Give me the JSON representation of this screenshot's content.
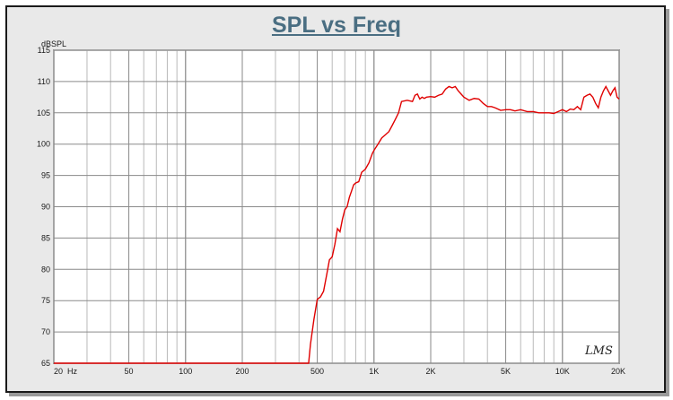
{
  "chart_data": {
    "type": "line",
    "title": "SPL vs Freq",
    "ylabel": "dBSPL",
    "xlabel": "",
    "x_scale": "log",
    "xlim": [
      20,
      20000
    ],
    "ylim": [
      65,
      115
    ],
    "grid": true,
    "signature": "LMS",
    "y_ticks": [
      "65",
      "70",
      "75",
      "80",
      "85",
      "90",
      "95",
      "100",
      "105",
      "110",
      "115"
    ],
    "x_ticks": [
      {
        "value": 20,
        "label": "20  Hz"
      },
      {
        "value": 50,
        "label": "50"
      },
      {
        "value": 100,
        "label": "100"
      },
      {
        "value": 200,
        "label": "200"
      },
      {
        "value": 500,
        "label": "500"
      },
      {
        "value": 1000,
        "label": "1K"
      },
      {
        "value": 2000,
        "label": "2K"
      },
      {
        "value": 5000,
        "label": "5K"
      },
      {
        "value": 10000,
        "label": "10K"
      },
      {
        "value": 20000,
        "label": "20K"
      }
    ],
    "series": [
      {
        "color": "#e00000",
        "x": [
          20,
          100,
          300,
          450,
          460,
          480,
          500,
          520,
          540,
          560,
          580,
          600,
          620,
          640,
          660,
          680,
          700,
          720,
          740,
          760,
          780,
          800,
          830,
          860,
          900,
          940,
          980,
          1000,
          1050,
          1100,
          1150,
          1200,
          1250,
          1300,
          1350,
          1400,
          1500,
          1600,
          1650,
          1700,
          1750,
          1800,
          1850,
          1900,
          2000,
          2100,
          2200,
          2300,
          2400,
          2500,
          2600,
          2700,
          2800,
          2900,
          3000,
          3200,
          3400,
          3600,
          3800,
          4000,
          4200,
          4400,
          4700,
          5000,
          5300,
          5600,
          6000,
          6500,
          7000,
          7500,
          8000,
          8500,
          9000,
          9500,
          10000,
          10500,
          11000,
          11500,
          12000,
          12500,
          13000,
          13500,
          14000,
          14500,
          15000,
          15500,
          16000,
          16500,
          17000,
          17500,
          18000,
          18500,
          19000,
          19500,
          20000
        ],
        "y": [
          65,
          65,
          65,
          65,
          68,
          72,
          75.2,
          75.6,
          76.5,
          79.0,
          81.5,
          82.0,
          84.0,
          86.5,
          86.0,
          88.0,
          89.5,
          90.0,
          91.5,
          92.5,
          93.5,
          93.8,
          94.0,
          95.5,
          96.0,
          97.0,
          98.5,
          99.0,
          100.0,
          101.0,
          101.5,
          102.0,
          103.0,
          104.0,
          105.0,
          106.8,
          107.0,
          106.8,
          107.8,
          108.0,
          107.2,
          107.5,
          107.3,
          107.5,
          107.6,
          107.5,
          107.8,
          108.0,
          108.8,
          109.2,
          109.0,
          109.2,
          108.5,
          108.0,
          107.5,
          107.0,
          107.3,
          107.2,
          106.5,
          106.0,
          106.0,
          105.8,
          105.4,
          105.5,
          105.5,
          105.3,
          105.5,
          105.2,
          105.2,
          105.0,
          105.0,
          105.0,
          104.9,
          105.2,
          105.5,
          105.2,
          105.6,
          105.5,
          106.0,
          105.5,
          107.5,
          107.8,
          108.0,
          107.5,
          106.5,
          105.8,
          107.5,
          108.5,
          109.2,
          108.5,
          107.8,
          108.5,
          109.0,
          107.5,
          107.2
        ]
      }
    ]
  }
}
